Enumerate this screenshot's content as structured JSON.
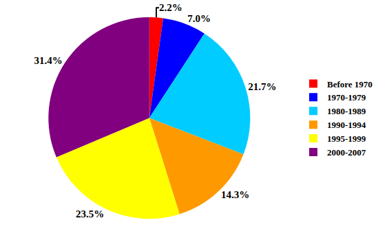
{
  "chart_data": {
    "type": "pie",
    "categories": [
      "Before 1970",
      "1970-1979",
      "1980-1989",
      "1990-1994",
      "1995-1999",
      "2000-2007"
    ],
    "values": [
      2.2,
      7.0,
      21.7,
      14.3,
      23.5,
      31.4
    ],
    "value_labels": [
      "2.2%",
      "7.0%",
      "21.7%",
      "14.3%",
      "23.5%",
      "31.4%"
    ],
    "colors": [
      "#ff0000",
      "#0000ff",
      "#00ccff",
      "#ff9900",
      "#ffff00",
      "#800080"
    ],
    "data_labels": true,
    "legend": "right"
  }
}
